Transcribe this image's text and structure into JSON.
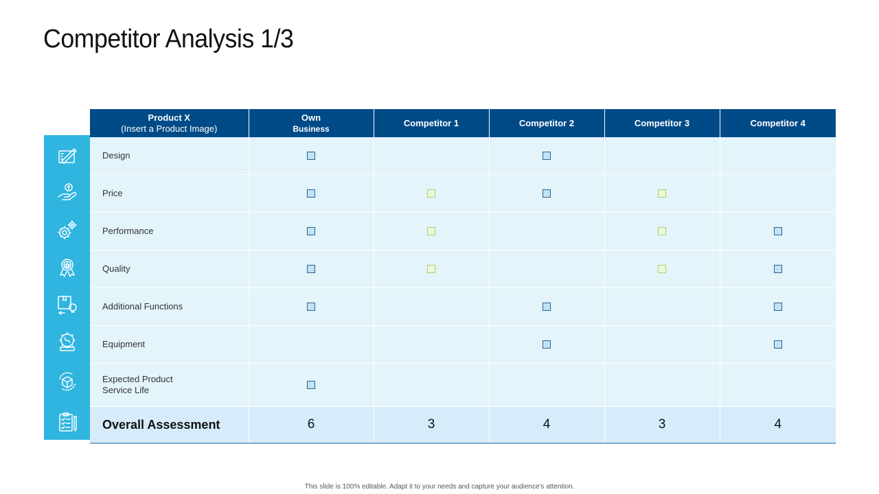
{
  "title": "Competitor Analysis 1/3",
  "colors": {
    "header_bg": "#004b87",
    "icon_column_bg": "#2fb5df",
    "cell_bg": "#e3f4fa",
    "overall_bg": "#d6ecfb",
    "mark_blue": "#bfe3f7",
    "mark_green": "#eef8d7"
  },
  "table": {
    "headers": [
      {
        "line1": "Product X",
        "line2": "(Insert a Product Image)"
      },
      {
        "line1": "Own",
        "line2": "Business"
      },
      {
        "line1": "Competitor 1",
        "line2": ""
      },
      {
        "line1": "Competitor 2",
        "line2": ""
      },
      {
        "line1": "Competitor 3",
        "line2": ""
      },
      {
        "line1": "Competitor 4",
        "line2": ""
      }
    ],
    "rows": [
      {
        "label": "Design",
        "icon": "design-tools-icon",
        "marks": [
          "blue",
          "",
          "blue",
          "",
          ""
        ]
      },
      {
        "label": "Price",
        "icon": "money-hand-icon",
        "marks": [
          "blue",
          "green",
          "blue",
          "green",
          ""
        ]
      },
      {
        "label": "Performance",
        "icon": "gears-icon",
        "marks": [
          "blue",
          "green",
          "",
          "green",
          "blue"
        ]
      },
      {
        "label": "Quality",
        "icon": "award-badge-icon",
        "marks": [
          "blue",
          "green",
          "",
          "green",
          "blue"
        ]
      },
      {
        "label": "Additional Functions",
        "icon": "box-lightbulb-icon",
        "marks": [
          "blue",
          "",
          "blue",
          "",
          "blue"
        ]
      },
      {
        "label": "Equipment",
        "icon": "gear-wrench-icon",
        "marks": [
          "",
          "",
          "blue",
          "",
          "blue"
        ]
      },
      {
        "label": "Expected Product\nService Life",
        "icon": "box-cycle-icon",
        "marks": [
          "blue",
          "",
          "",
          "",
          ""
        ]
      }
    ],
    "overall": {
      "label": "Overall Assessment",
      "icon": "clipboard-checklist-icon",
      "values": [
        "6",
        "3",
        "4",
        "3",
        "4"
      ]
    }
  },
  "footer": "This slide is 100% editable. Adapt it to your needs and capture your audience's attention."
}
